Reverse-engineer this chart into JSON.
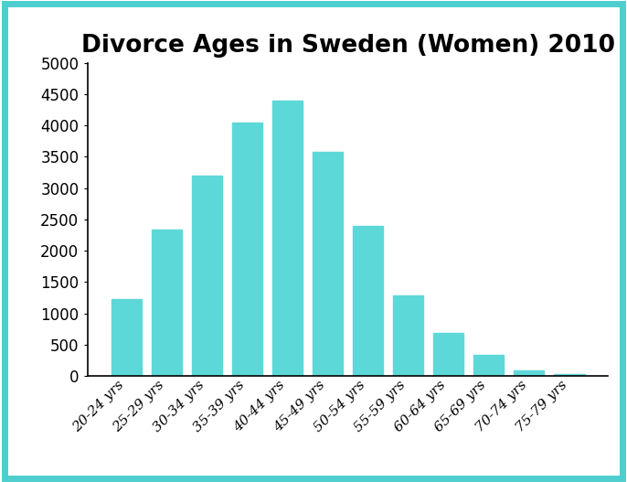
{
  "title": "Divorce Ages in Sweden (Women) 2010",
  "categories": [
    "20-24 yrs",
    "25-29 yrs",
    "30-34 yrs",
    "35-39 yrs",
    "40-44 yrs",
    "45-49 yrs",
    "50-54 yrs",
    "55-59 yrs",
    "60-64 yrs",
    "65-69 yrs",
    "70-74 yrs",
    "75-79 yrs"
  ],
  "values": [
    1230,
    2340,
    3200,
    4050,
    4400,
    3580,
    2390,
    1290,
    680,
    330,
    90,
    30
  ],
  "bar_color": "#5DD8D8",
  "background_color": "#ffffff",
  "border_color": "#4ECECE",
  "ylim": [
    0,
    5000
  ],
  "yticks": [
    0,
    500,
    1000,
    1500,
    2000,
    2500,
    3000,
    3500,
    4000,
    4500,
    5000
  ],
  "title_fontsize": 19,
  "ytick_fontsize": 12,
  "xtick_fontsize": 11,
  "border_linewidth": 5
}
